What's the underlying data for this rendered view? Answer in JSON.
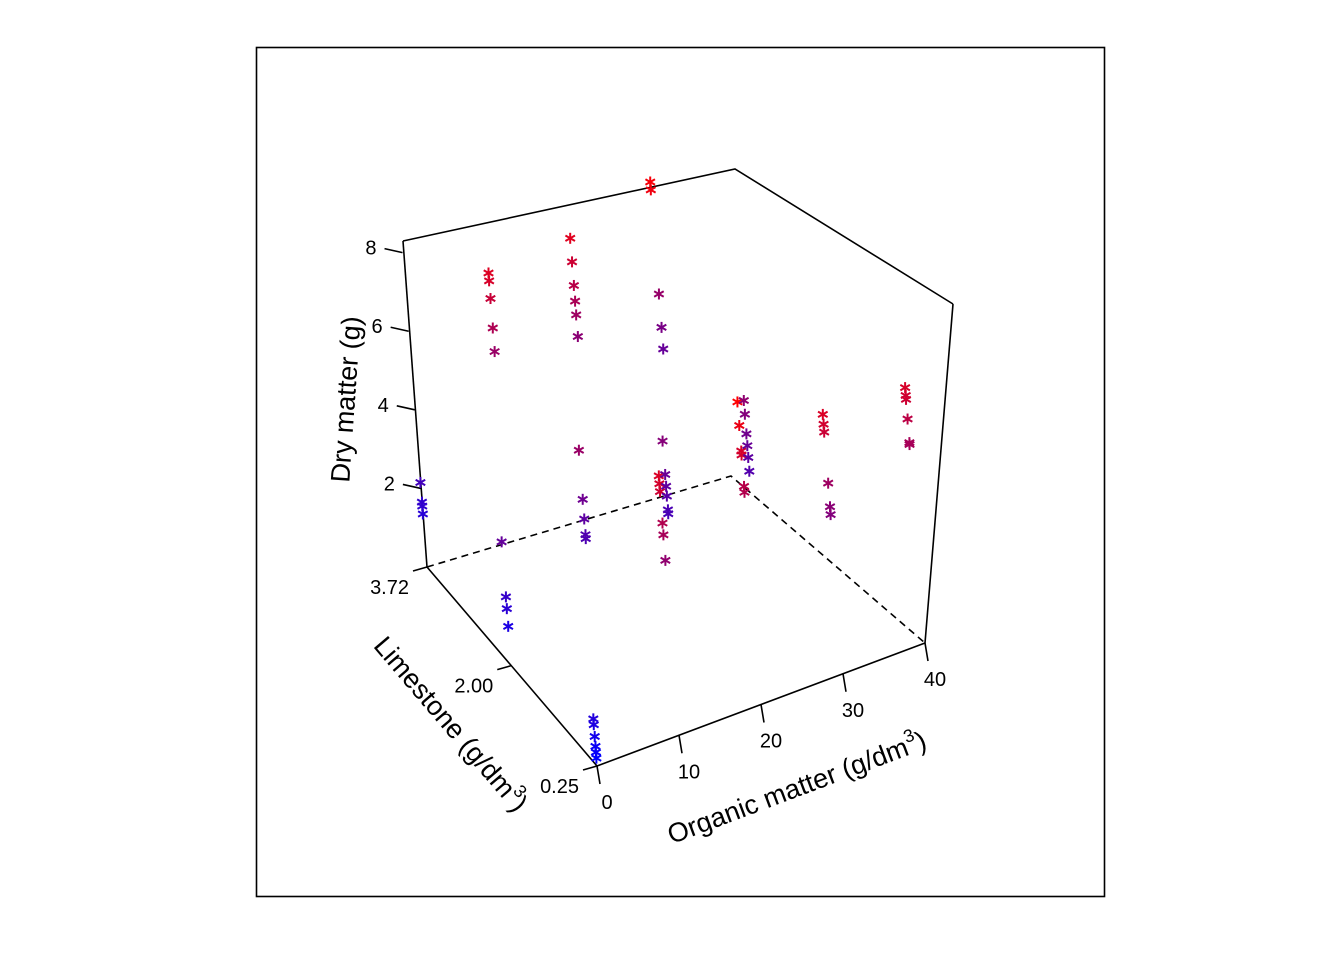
{
  "chart_data": {
    "type": "scatter3d",
    "title": "",
    "point_symbol": "asterisk",
    "color_scale": {
      "low": "#0000ff",
      "high": "#ff0000",
      "mapped_to": "Dry matter (g)"
    },
    "axes": {
      "x": {
        "label": "Organic matter (g/dm",
        "label_sup": "3",
        "label_tail": ")",
        "range": [
          0,
          40
        ],
        "ticks": [
          0,
          10,
          20,
          30,
          40
        ],
        "tick_labels": [
          "0",
          "10",
          "20",
          "30",
          "40"
        ]
      },
      "y": {
        "label": "Limestone (g/dm",
        "label_sup": "3",
        "label_tail": ")",
        "range": [
          0.25,
          3.72
        ],
        "ticks": [
          0.25,
          2.0,
          3.72
        ],
        "tick_labels": [
          "0.25",
          "2.00",
          "3.72"
        ]
      },
      "z": {
        "label": "Dry matter (g)",
        "range": [
          0,
          8.5
        ],
        "ticks": [
          2,
          4,
          6,
          8
        ],
        "tick_labels": [
          "2",
          "4",
          "6",
          "8"
        ]
      }
    },
    "points": [
      {
        "x": 0,
        "y": 0.25,
        "z": 0.2
      },
      {
        "x": 0,
        "y": 0.25,
        "z": 0.35
      },
      {
        "x": 0,
        "y": 0.25,
        "z": 0.5
      },
      {
        "x": 0,
        "y": 0.25,
        "z": 0.75
      },
      {
        "x": 0,
        "y": 0.25,
        "z": 1.05
      },
      {
        "x": 0,
        "y": 0.25,
        "z": 1.2
      },
      {
        "x": 0,
        "y": 2.0,
        "z": 1.0
      },
      {
        "x": 0,
        "y": 2.0,
        "z": 1.45
      },
      {
        "x": 0,
        "y": 2.0,
        "z": 1.75
      },
      {
        "x": 0,
        "y": 2.0,
        "z": 3.15
      },
      {
        "x": 0,
        "y": 3.72,
        "z": 1.35
      },
      {
        "x": 0,
        "y": 3.72,
        "z": 1.55
      },
      {
        "x": 0,
        "y": 3.72,
        "z": 1.65
      },
      {
        "x": 0,
        "y": 3.72,
        "z": 2.15
      },
      {
        "x": 10,
        "y": 0.25,
        "z": 4.45
      },
      {
        "x": 10,
        "y": 0.25,
        "z": 5.1
      },
      {
        "x": 10,
        "y": 0.25,
        "z": 5.4
      },
      {
        "x": 10,
        "y": 0.25,
        "z": 6.2
      },
      {
        "x": 10,
        "y": 0.25,
        "z": 6.4
      },
      {
        "x": 10,
        "y": 0.25,
        "z": 6.6
      },
      {
        "x": 10,
        "y": 2.0,
        "z": 2.45
      },
      {
        "x": 10,
        "y": 2.0,
        "z": 2.55
      },
      {
        "x": 10,
        "y": 2.0,
        "z": 2.95
      },
      {
        "x": 10,
        "y": 2.0,
        "z": 3.45
      },
      {
        "x": 10,
        "y": 2.0,
        "z": 4.7
      },
      {
        "x": 10,
        "y": 3.72,
        "z": 4.7
      },
      {
        "x": 10,
        "y": 3.72,
        "z": 5.3
      },
      {
        "x": 10,
        "y": 3.72,
        "z": 6.05
      },
      {
        "x": 10,
        "y": 3.72,
        "z": 6.5
      },
      {
        "x": 10,
        "y": 3.72,
        "z": 6.7
      },
      {
        "x": 20,
        "y": 0.25,
        "z": 5.4
      },
      {
        "x": 20,
        "y": 0.25,
        "z": 5.55
      },
      {
        "x": 20,
        "y": 0.25,
        "z": 6.35
      },
      {
        "x": 20,
        "y": 0.25,
        "z": 6.45
      },
      {
        "x": 20,
        "y": 0.25,
        "z": 7.1
      },
      {
        "x": 20,
        "y": 0.25,
        "z": 7.7
      },
      {
        "x": 20,
        "y": 2.0,
        "z": 2.3
      },
      {
        "x": 20,
        "y": 2.0,
        "z": 2.4
      },
      {
        "x": 20,
        "y": 2.0,
        "z": 2.75
      },
      {
        "x": 20,
        "y": 2.0,
        "z": 3.0
      },
      {
        "x": 20,
        "y": 2.0,
        "z": 3.3
      },
      {
        "x": 20,
        "y": 2.0,
        "z": 4.15
      },
      {
        "x": 20,
        "y": 3.72,
        "z": 4.3
      },
      {
        "x": 20,
        "y": 3.72,
        "z": 4.85
      },
      {
        "x": 20,
        "y": 3.72,
        "z": 5.2
      },
      {
        "x": 20,
        "y": 3.72,
        "z": 5.6
      },
      {
        "x": 20,
        "y": 3.72,
        "z": 6.2
      },
      {
        "x": 20,
        "y": 3.72,
        "z": 6.8
      },
      {
        "x": 30,
        "y": 0.25,
        "z": 4.05
      },
      {
        "x": 30,
        "y": 0.25,
        "z": 4.25
      },
      {
        "x": 30,
        "y": 0.25,
        "z": 4.85
      },
      {
        "x": 30,
        "y": 0.25,
        "z": 6.15
      },
      {
        "x": 30,
        "y": 0.25,
        "z": 6.35
      },
      {
        "x": 30,
        "y": 0.25,
        "z": 6.6
      },
      {
        "x": 30,
        "y": 2.0,
        "z": 2.6
      },
      {
        "x": 30,
        "y": 2.0,
        "z": 2.95
      },
      {
        "x": 30,
        "y": 2.0,
        "z": 3.25
      },
      {
        "x": 30,
        "y": 2.0,
        "z": 3.55
      },
      {
        "x": 30,
        "y": 2.0,
        "z": 4.05
      },
      {
        "x": 30,
        "y": 2.0,
        "z": 4.4
      },
      {
        "x": 30,
        "y": 3.72,
        "z": 3.2
      },
      {
        "x": 30,
        "y": 3.72,
        "z": 3.75
      },
      {
        "x": 30,
        "y": 3.72,
        "z": 4.6
      },
      {
        "x": 30,
        "y": 3.72,
        "z": 7.25
      },
      {
        "x": 30,
        "y": 3.72,
        "z": 7.45
      },
      {
        "x": 40,
        "y": 0.25,
        "z": 5.05
      },
      {
        "x": 40,
        "y": 0.25,
        "z": 5.1
      },
      {
        "x": 40,
        "y": 0.25,
        "z": 5.7
      },
      {
        "x": 40,
        "y": 0.25,
        "z": 6.2
      },
      {
        "x": 40,
        "y": 0.25,
        "z": 6.3
      },
      {
        "x": 40,
        "y": 0.25,
        "z": 6.5
      }
    ]
  }
}
